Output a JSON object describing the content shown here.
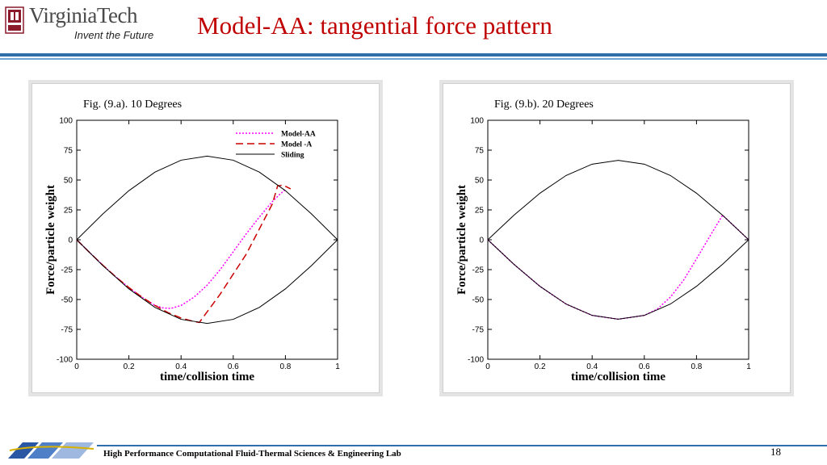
{
  "header": {
    "logo_word": "VirginiaTech",
    "logo_tagline": "Invent the Future",
    "title": "Model-AA: tangential force pattern"
  },
  "footer": {
    "lab": "High Performance Computational Fluid-Thermal Sciences & Engineering Lab",
    "page_number": "18"
  },
  "colors": {
    "title": "#c00000",
    "rule": "#2f6ea8",
    "model_aa": "#ff00ff",
    "model_a": "#cc0000",
    "sliding": "#000000"
  },
  "chart_data": [
    {
      "type": "line",
      "title": "Fig. (9.a). 10 Degrees",
      "xlabel": "time/collision time",
      "ylabel": "Force/particle weight",
      "xlim": [
        0,
        1
      ],
      "ylim": [
        -100,
        100
      ],
      "xticks": [
        "0",
        "0.2",
        "0.4",
        "0.6",
        "0.8",
        "1"
      ],
      "yticks": [
        "100",
        "75",
        "50",
        "25",
        "0",
        "-25",
        "-50",
        "-75",
        "-100"
      ],
      "legend_position": "top-right",
      "series": [
        {
          "name": "Model-AA",
          "style": "dotted",
          "color": "#ff00ff",
          "points": [
            [
              0,
              0
            ],
            [
              0.05,
              -10.8
            ],
            [
              0.1,
              -21.3
            ],
            [
              0.15,
              -31.1
            ],
            [
              0.2,
              -40
            ],
            [
              0.25,
              -48
            ],
            [
              0.3,
              -55
            ],
            [
              0.33,
              -57
            ],
            [
              0.36,
              -57.5
            ],
            [
              0.4,
              -55
            ],
            [
              0.45,
              -48
            ],
            [
              0.5,
              -38
            ],
            [
              0.55,
              -25
            ],
            [
              0.6,
              -10
            ],
            [
              0.65,
              5
            ],
            [
              0.7,
              19
            ],
            [
              0.75,
              32
            ],
            [
              0.78,
              38.4
            ],
            [
              0.79,
              40.2
            ],
            [
              0.8,
              41.8
            ]
          ]
        },
        {
          "name": "Model -A",
          "style": "dashed",
          "color": "#cc0000",
          "points": [
            [
              0,
              0
            ],
            [
              0.05,
              -10.8
            ],
            [
              0.1,
              -21.3
            ],
            [
              0.15,
              -31.1
            ],
            [
              0.2,
              -40
            ],
            [
              0.25,
              -48
            ],
            [
              0.3,
              -55
            ],
            [
              0.35,
              -61
            ],
            [
              0.4,
              -65.5
            ],
            [
              0.45,
              -68.5
            ],
            [
              0.47,
              -69.2
            ],
            [
              0.55,
              -45.5
            ],
            [
              0.65,
              -12
            ],
            [
              0.75,
              30
            ],
            [
              0.77,
              45
            ],
            [
              0.79,
              45.8
            ],
            [
              0.82,
              42.6
            ]
          ]
        },
        {
          "name": "Sliding",
          "style": "solid",
          "color": "#000000",
          "points": [
            [
              0,
              0
            ],
            [
              0.1,
              21.6
            ],
            [
              0.2,
              41.1
            ],
            [
              0.3,
              56.6
            ],
            [
              0.4,
              66.6
            ],
            [
              0.5,
              70
            ],
            [
              0.6,
              66.6
            ],
            [
              0.7,
              56.6
            ],
            [
              0.8,
              41.1
            ],
            [
              0.9,
              21.6
            ],
            [
              1,
              0
            ],
            [
              0.9,
              -21.6
            ],
            [
              0.8,
              -41.1
            ],
            [
              0.7,
              -56.6
            ],
            [
              0.6,
              -66.6
            ],
            [
              0.5,
              -70
            ],
            [
              0.4,
              -66.6
            ],
            [
              0.3,
              -56.6
            ],
            [
              0.2,
              -41.1
            ],
            [
              0.1,
              -21.6
            ],
            [
              0,
              0
            ]
          ]
        }
      ]
    },
    {
      "type": "line",
      "title": "Fig. (9.b). 20 Degrees",
      "xlabel": "time/collision time",
      "ylabel": "Force/particle weight",
      "xlim": [
        0,
        1
      ],
      "ylim": [
        -100,
        100
      ],
      "xticks": [
        "0",
        "0.2",
        "0.4",
        "0.6",
        "0.8",
        "1"
      ],
      "yticks": [
        "100",
        "75",
        "50",
        "25",
        "0",
        "-25",
        "-50",
        "-75",
        "-100"
      ],
      "series": [
        {
          "name": "",
          "style": "dotted",
          "color": "#ff00ff",
          "points": [
            [
              0,
              0
            ],
            [
              0.1,
              -20.5
            ],
            [
              0.2,
              -39
            ],
            [
              0.3,
              -53.8
            ],
            [
              0.4,
              -63.3
            ],
            [
              0.5,
              -66.5
            ],
            [
              0.6,
              -63.3
            ],
            [
              0.65,
              -58
            ],
            [
              0.7,
              -48
            ],
            [
              0.75,
              -34
            ],
            [
              0.8,
              -16
            ],
            [
              0.85,
              2.5
            ],
            [
              0.9,
              20.5
            ],
            [
              0.95,
              10.3
            ],
            [
              1,
              0
            ]
          ]
        },
        {
          "name": "",
          "style": "solid",
          "color": "#000000",
          "points": [
            [
              0,
              0
            ],
            [
              0.1,
              20.5
            ],
            [
              0.2,
              39
            ],
            [
              0.3,
              53.8
            ],
            [
              0.4,
              63.3
            ],
            [
              0.5,
              66.5
            ],
            [
              0.6,
              63.3
            ],
            [
              0.7,
              53.8
            ],
            [
              0.8,
              39
            ],
            [
              0.9,
              20.5
            ],
            [
              1,
              0
            ],
            [
              0.9,
              -20.5
            ],
            [
              0.8,
              -39
            ],
            [
              0.7,
              -53.8
            ],
            [
              0.6,
              -63.3
            ],
            [
              0.5,
              -66.5
            ],
            [
              0.4,
              -63.3
            ],
            [
              0.3,
              -53.8
            ],
            [
              0.2,
              -39
            ],
            [
              0.1,
              -20.5
            ],
            [
              0,
              0
            ]
          ]
        }
      ]
    }
  ]
}
